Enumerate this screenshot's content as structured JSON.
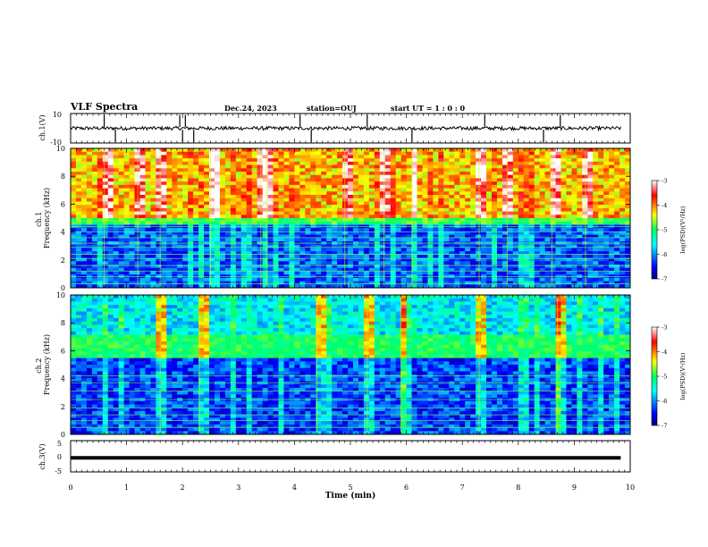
{
  "header": {
    "title": "VLF Spectra",
    "date": "Dec.24, 2023",
    "station": "station=OUJ",
    "start": "start  UT =   1 : 0  : 0"
  },
  "chart_data": [
    {
      "type": "line",
      "panel": "ch1-waveform",
      "ylabel": "ch.1(V)",
      "ylim": [
        -10,
        10
      ],
      "yticks": [
        "10",
        "-10"
      ],
      "xlim": [
        0,
        10
      ],
      "data_extent_min": 9.83,
      "baseline_v": 0.0,
      "noise_amplitude_v": 2,
      "spikes_min": [
        0.6,
        0.8,
        1.95,
        2.0,
        2.05,
        2.2,
        4.1,
        4.3,
        5.3,
        6.1,
        7.4,
        8.45,
        8.75
      ]
    },
    {
      "type": "heatmap",
      "panel": "ch1-spectrogram",
      "ylabel": "ch.1\nFrequency (kHz)",
      "ylim": [
        0,
        10
      ],
      "yticks": [
        "0",
        "2",
        "4",
        "6",
        "8",
        "10"
      ],
      "xlim": [
        0,
        10
      ],
      "colorbar": {
        "label": "log(PSD)(V²/Hz)",
        "range": [
          -7,
          -3
        ],
        "ticks": [
          "-3",
          "-4",
          "-5",
          "-6",
          "-7"
        ]
      },
      "high_band_khz": [
        5,
        10
      ],
      "high_band_level": -4.2,
      "low_band_level": -6.2,
      "red_bursts_min": [
        0.6,
        1.2,
        1.6,
        2.5,
        3.4,
        3.5,
        4.9,
        5.6,
        6.1,
        7.3,
        7.8,
        8.6,
        9.2
      ],
      "line_frequencies_khz": [
        0.3,
        0.8,
        1.2,
        1.6,
        2.1,
        2.4,
        2.9,
        3.2,
        3.6,
        4.0,
        4.4,
        4.8
      ]
    },
    {
      "type": "heatmap",
      "panel": "ch2-spectrogram",
      "ylabel": "ch.2\nFrequency (kHz)",
      "ylim": [
        0,
        10
      ],
      "yticks": [
        "0",
        "2",
        "4",
        "6",
        "8",
        "10"
      ],
      "xlim": [
        0,
        10
      ],
      "colorbar": {
        "label": "log(PSD)(V²/Hz)",
        "range": [
          -7,
          -3
        ],
        "ticks": [
          "-3",
          "-4",
          "-5",
          "-6",
          "-7"
        ]
      },
      "bright_band_khz": [
        5.5,
        7.2
      ],
      "bright_band_level": -5.0,
      "background_level": -6.3,
      "red_bursts_min": [
        1.6,
        2.3,
        4.4,
        5.3,
        5.9,
        7.3,
        8.7
      ],
      "line_frequencies_khz": [
        0.5,
        1.0,
        1.4,
        1.9,
        2.5,
        3.1,
        3.7,
        4.2
      ]
    },
    {
      "type": "line",
      "panel": "ch3-waveform",
      "ylabel": "ch.3(V)",
      "ylim": [
        -5,
        5
      ],
      "yticks": [
        "5",
        "0",
        "-5"
      ],
      "xlim": [
        0,
        10
      ],
      "data_extent_min": 9.83,
      "constant_value_v": -0.5
    }
  ],
  "xaxis": {
    "label": "Time (min)",
    "ticks": [
      "0",
      "1",
      "2",
      "3",
      "4",
      "5",
      "6",
      "7",
      "8",
      "9",
      "10"
    ]
  }
}
